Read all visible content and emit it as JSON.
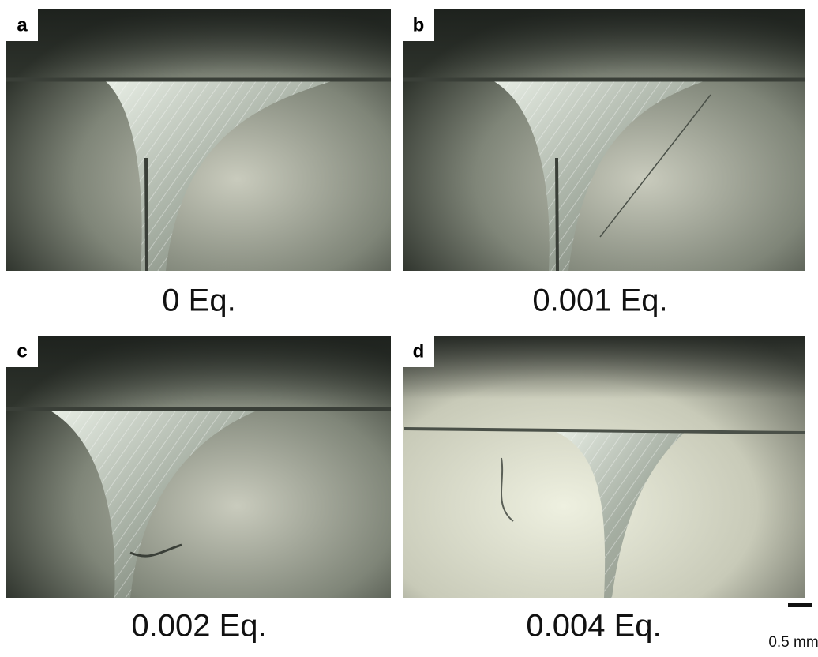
{
  "panels": [
    {
      "label": "a",
      "caption": "0 Eq."
    },
    {
      "label": "b",
      "caption": "0.001 Eq."
    },
    {
      "label": "c",
      "caption": "0.002 Eq."
    },
    {
      "label": "d",
      "caption": "0.004 Eq."
    }
  ],
  "scale_bar": "0.5 mm"
}
